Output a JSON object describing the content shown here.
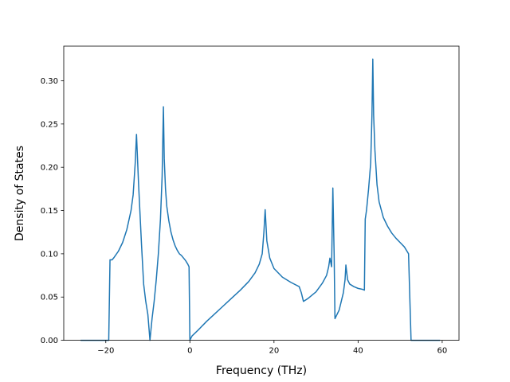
{
  "chart_data": {
    "type": "line",
    "title": "",
    "xlabel": "Frequency (THz)",
    "ylabel": "Density of States",
    "xlim": [
      -30,
      64
    ],
    "ylim": [
      0,
      0.34
    ],
    "xticks": [
      -20,
      0,
      20,
      40,
      60
    ],
    "xtick_labels": [
      "−20",
      "0",
      "20",
      "40",
      "60"
    ],
    "yticks": [
      0.0,
      0.05,
      0.1,
      0.15,
      0.2,
      0.25,
      0.3
    ],
    "ytick_labels": [
      "0.00",
      "0.05",
      "0.10",
      "0.15",
      "0.20",
      "0.25",
      "0.30"
    ],
    "grid": false,
    "legend": "none",
    "series_color": "#1f77b4",
    "series": [
      {
        "x": [
          -26,
          -19.3,
          -19.0,
          -18.5,
          -18.0,
          -17.0,
          -16.0,
          -15.0,
          -14.0,
          -13.5,
          -13.0,
          -12.7,
          -12.2,
          -11.5,
          -11.0,
          -10.5,
          -10.0,
          -9.5,
          -9.0,
          -8.5,
          -8.0,
          -7.5,
          -7.0,
          -6.6,
          -6.3,
          -6.1,
          -5.8,
          -5.5,
          -5.0,
          -4.5,
          -4.0,
          -3.5,
          -3.0,
          -2.5,
          -2.0,
          -1.5,
          -1.0,
          -0.5,
          -0.2,
          0.0,
          0.5,
          2.0,
          4.0,
          6.0,
          8.0,
          10.0,
          12.0,
          14.0,
          15.5,
          16.5,
          17.2,
          17.6,
          17.9,
          18.3,
          19.0,
          20.0,
          22.0,
          24.0,
          26.0,
          26.5,
          27.0,
          28.0,
          30.0,
          31.5,
          32.5,
          33.0,
          33.3,
          33.7,
          34.0,
          34.3,
          34.5,
          35.0,
          35.5,
          36.0,
          36.5,
          36.9,
          37.1,
          37.5,
          38.0,
          39.0,
          40.0,
          41.0,
          41.5,
          41.7,
          42.0,
          42.5,
          43.0,
          43.3,
          43.5,
          43.7,
          44.0,
          44.5,
          45.0,
          46.0,
          47.0,
          48.0,
          49.0,
          50.0,
          51.0,
          52.0,
          52.3,
          52.6,
          53.0,
          55.0,
          59.5
        ],
        "y": [
          0.0,
          0.0,
          0.093,
          0.093,
          0.096,
          0.103,
          0.113,
          0.128,
          0.15,
          0.168,
          0.205,
          0.238,
          0.18,
          0.11,
          0.065,
          0.045,
          0.03,
          0.0,
          0.025,
          0.045,
          0.07,
          0.1,
          0.14,
          0.19,
          0.27,
          0.21,
          0.175,
          0.155,
          0.138,
          0.125,
          0.116,
          0.109,
          0.104,
          0.1,
          0.098,
          0.095,
          0.092,
          0.088,
          0.085,
          0.0,
          0.005,
          0.012,
          0.022,
          0.031,
          0.04,
          0.049,
          0.058,
          0.068,
          0.078,
          0.088,
          0.1,
          0.125,
          0.151,
          0.115,
          0.095,
          0.083,
          0.073,
          0.067,
          0.062,
          0.055,
          0.045,
          0.048,
          0.056,
          0.066,
          0.075,
          0.085,
          0.095,
          0.085,
          0.176,
          0.1,
          0.025,
          0.03,
          0.035,
          0.045,
          0.055,
          0.07,
          0.087,
          0.07,
          0.065,
          0.062,
          0.06,
          0.059,
          0.058,
          0.14,
          0.15,
          0.175,
          0.205,
          0.26,
          0.325,
          0.26,
          0.22,
          0.18,
          0.16,
          0.142,
          0.132,
          0.124,
          0.118,
          0.113,
          0.108,
          0.1,
          0.05,
          0.0,
          0.0,
          0.0,
          0.0
        ]
      }
    ]
  }
}
